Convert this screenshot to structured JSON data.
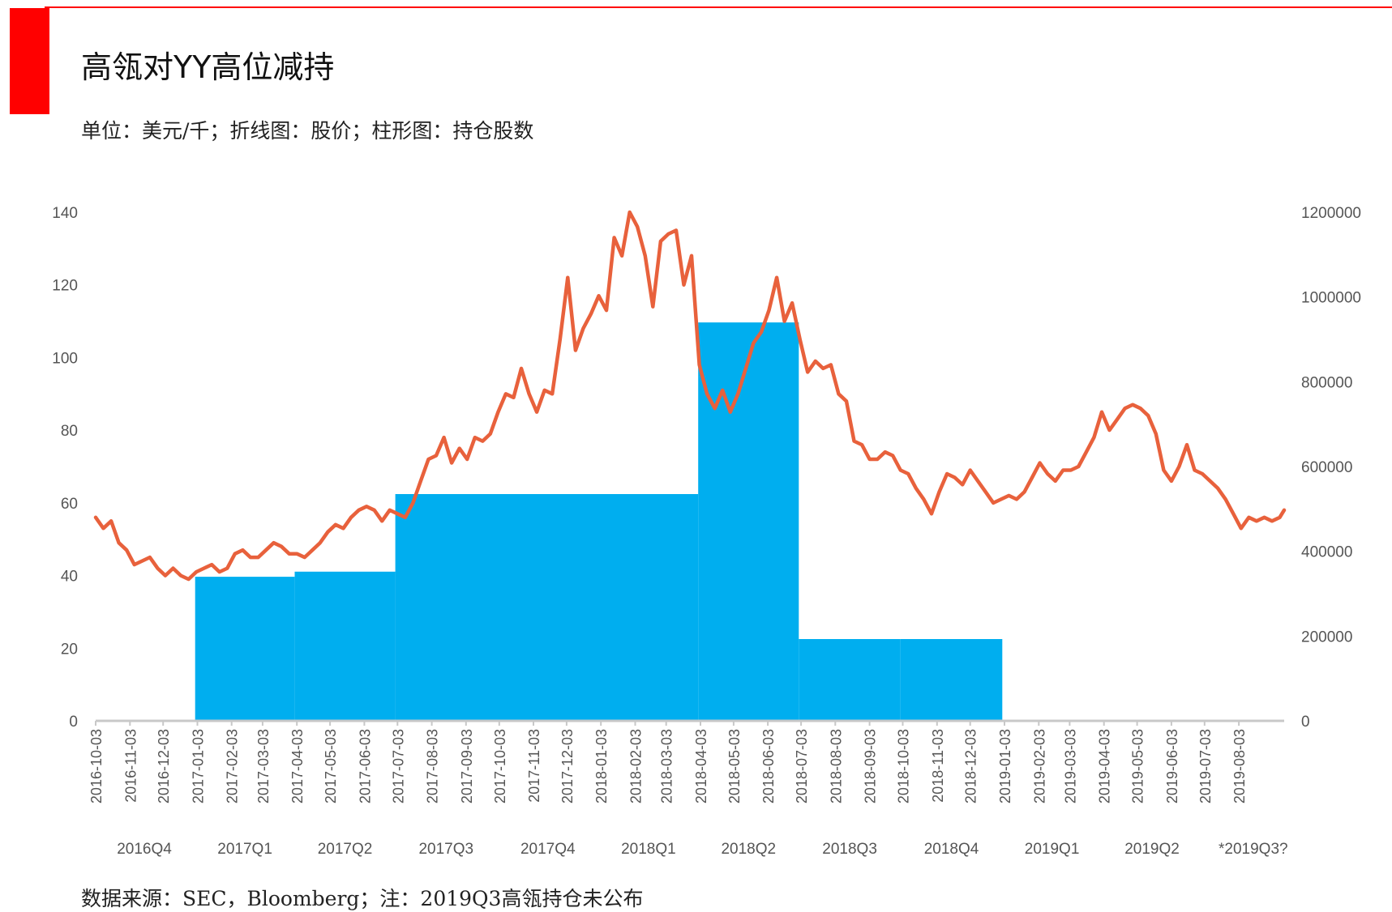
{
  "header": {
    "title": "高瓴对YY高位减持",
    "subtitle": "单位：美元/千；折线图：股价；柱形图：持仓股数"
  },
  "footer": {
    "source": "数据来源：SEC，Bloomberg；注：2019Q3高瓴持仓未公布"
  },
  "colors": {
    "accent_red": "#ff0000",
    "line": "#e8613c",
    "bars": "#00aeef",
    "axis": "#c8c8c8"
  },
  "chart_data": {
    "type": "bar+line",
    "title": "高瓴对YY高位减持",
    "left_axis": {
      "label": "股价",
      "ylim": [
        0,
        140
      ],
      "ticks": [
        0,
        20,
        40,
        60,
        80,
        100,
        120,
        140
      ]
    },
    "right_axis": {
      "label": "持仓股数",
      "ylim": [
        0,
        1200000
      ],
      "ticks": [
        0,
        200000,
        400000,
        600000,
        800000,
        1000000,
        1200000
      ]
    },
    "date_range": [
      "2016-10-03",
      "2019-09-13"
    ],
    "x_tick_labels": [
      "2016-10-03",
      "2016-11-03",
      "2016-12-03",
      "2017-01-03",
      "2017-02-03",
      "2017-03-03",
      "2017-04-03",
      "2017-05-03",
      "2017-06-03",
      "2017-07-03",
      "2017-08-03",
      "2017-09-03",
      "2017-10-03",
      "2017-11-03",
      "2017-12-03",
      "2018-01-03",
      "2018-02-03",
      "2018-03-03",
      "2018-04-03",
      "2018-05-03",
      "2018-06-03",
      "2018-07-03",
      "2018-08-03",
      "2018-09-03",
      "2018-10-03",
      "2018-11-03",
      "2018-12-03",
      "2019-01-03",
      "2019-02-03",
      "2019-03-03",
      "2019-04-03",
      "2019-05-03",
      "2019-06-03",
      "2019-07-03",
      "2019-08-03"
    ],
    "quarter_labels": [
      {
        "label": "2016Q4",
        "start": "2016-10-01",
        "end": "2016-12-31"
      },
      {
        "label": "2017Q1",
        "start": "2017-01-01",
        "end": "2017-03-31"
      },
      {
        "label": "2017Q2",
        "start": "2017-04-01",
        "end": "2017-06-30"
      },
      {
        "label": "2017Q3",
        "start": "2017-07-01",
        "end": "2017-09-30"
      },
      {
        "label": "2017Q4",
        "start": "2017-10-01",
        "end": "2017-12-31"
      },
      {
        "label": "2018Q1",
        "start": "2018-01-01",
        "end": "2018-03-31"
      },
      {
        "label": "2018Q2",
        "start": "2018-04-01",
        "end": "2018-06-30"
      },
      {
        "label": "2018Q3",
        "start": "2018-07-01",
        "end": "2018-09-30"
      },
      {
        "label": "2018Q4",
        "start": "2018-10-01",
        "end": "2018-12-31"
      },
      {
        "label": "2019Q1",
        "start": "2019-01-01",
        "end": "2019-03-31"
      },
      {
        "label": "2019Q2",
        "start": "2019-04-01",
        "end": "2019-06-30"
      },
      {
        "label": "*2019Q3?",
        "start": "2019-07-01",
        "end": "2019-09-30"
      }
    ],
    "holdings": [
      {
        "start": "2017-01-01",
        "end": "2017-03-31",
        "shares": 340000
      },
      {
        "start": "2017-04-01",
        "end": "2017-06-30",
        "shares": 352000
      },
      {
        "start": "2017-07-01",
        "end": "2017-12-31",
        "shares": 535000
      },
      {
        "start": "2018-01-01",
        "end": "2018-03-31",
        "shares": 535000
      },
      {
        "start": "2018-04-01",
        "end": "2018-06-30",
        "shares": 940000
      },
      {
        "start": "2018-07-01",
        "end": "2018-09-30",
        "shares": 193000
      },
      {
        "start": "2018-10-01",
        "end": "2018-12-31",
        "shares": 193000
      }
    ],
    "price": [
      [
        "2016-10-03",
        56
      ],
      [
        "2016-10-10",
        53
      ],
      [
        "2016-10-17",
        55
      ],
      [
        "2016-10-24",
        49
      ],
      [
        "2016-10-31",
        47
      ],
      [
        "2016-11-07",
        43
      ],
      [
        "2016-11-14",
        44
      ],
      [
        "2016-11-21",
        45
      ],
      [
        "2016-11-28",
        42
      ],
      [
        "2016-12-05",
        40
      ],
      [
        "2016-12-12",
        42
      ],
      [
        "2016-12-19",
        40
      ],
      [
        "2016-12-26",
        39
      ],
      [
        "2017-01-02",
        41
      ],
      [
        "2017-01-09",
        42
      ],
      [
        "2017-01-16",
        43
      ],
      [
        "2017-01-23",
        41
      ],
      [
        "2017-01-30",
        42
      ],
      [
        "2017-02-06",
        46
      ],
      [
        "2017-02-13",
        47
      ],
      [
        "2017-02-20",
        45
      ],
      [
        "2017-02-27",
        45
      ],
      [
        "2017-03-06",
        47
      ],
      [
        "2017-03-13",
        49
      ],
      [
        "2017-03-20",
        48
      ],
      [
        "2017-03-27",
        46
      ],
      [
        "2017-04-03",
        46
      ],
      [
        "2017-04-10",
        45
      ],
      [
        "2017-04-17",
        47
      ],
      [
        "2017-04-24",
        49
      ],
      [
        "2017-05-01",
        52
      ],
      [
        "2017-05-08",
        54
      ],
      [
        "2017-05-15",
        53
      ],
      [
        "2017-05-22",
        56
      ],
      [
        "2017-05-29",
        58
      ],
      [
        "2017-06-05",
        59
      ],
      [
        "2017-06-12",
        58
      ],
      [
        "2017-06-19",
        55
      ],
      [
        "2017-06-26",
        58
      ],
      [
        "2017-07-03",
        57
      ],
      [
        "2017-07-10",
        56
      ],
      [
        "2017-07-17",
        60
      ],
      [
        "2017-07-24",
        66
      ],
      [
        "2017-07-31",
        72
      ],
      [
        "2017-08-07",
        73
      ],
      [
        "2017-08-14",
        78
      ],
      [
        "2017-08-21",
        71
      ],
      [
        "2017-08-28",
        75
      ],
      [
        "2017-09-04",
        72
      ],
      [
        "2017-09-11",
        78
      ],
      [
        "2017-09-18",
        77
      ],
      [
        "2017-09-25",
        79
      ],
      [
        "2017-10-02",
        85
      ],
      [
        "2017-10-09",
        90
      ],
      [
        "2017-10-16",
        89
      ],
      [
        "2017-10-23",
        97
      ],
      [
        "2017-10-30",
        90
      ],
      [
        "2017-11-06",
        85
      ],
      [
        "2017-11-13",
        91
      ],
      [
        "2017-11-20",
        90
      ],
      [
        "2017-11-27",
        105
      ],
      [
        "2017-12-04",
        122
      ],
      [
        "2017-12-11",
        102
      ],
      [
        "2017-12-18",
        108
      ],
      [
        "2017-12-25",
        112
      ],
      [
        "2018-01-01",
        117
      ],
      [
        "2018-01-08",
        113
      ],
      [
        "2018-01-15",
        133
      ],
      [
        "2018-01-22",
        128
      ],
      [
        "2018-01-29",
        140
      ],
      [
        "2018-02-05",
        136
      ],
      [
        "2018-02-12",
        128
      ],
      [
        "2018-02-19",
        114
      ],
      [
        "2018-02-26",
        132
      ],
      [
        "2018-03-05",
        134
      ],
      [
        "2018-03-12",
        135
      ],
      [
        "2018-03-19",
        120
      ],
      [
        "2018-03-26",
        128
      ],
      [
        "2018-04-02",
        98
      ],
      [
        "2018-04-09",
        90
      ],
      [
        "2018-04-16",
        86
      ],
      [
        "2018-04-23",
        91
      ],
      [
        "2018-04-30",
        85
      ],
      [
        "2018-05-07",
        90
      ],
      [
        "2018-05-14",
        97
      ],
      [
        "2018-05-21",
        104
      ],
      [
        "2018-05-28",
        107
      ],
      [
        "2018-06-04",
        113
      ],
      [
        "2018-06-11",
        122
      ],
      [
        "2018-06-18",
        110
      ],
      [
        "2018-06-25",
        115
      ],
      [
        "2018-07-02",
        105
      ],
      [
        "2018-07-09",
        96
      ],
      [
        "2018-07-16",
        99
      ],
      [
        "2018-07-23",
        97
      ],
      [
        "2018-07-30",
        98
      ],
      [
        "2018-08-06",
        90
      ],
      [
        "2018-08-13",
        88
      ],
      [
        "2018-08-20",
        77
      ],
      [
        "2018-08-27",
        76
      ],
      [
        "2018-09-03",
        72
      ],
      [
        "2018-09-10",
        72
      ],
      [
        "2018-09-17",
        74
      ],
      [
        "2018-09-24",
        73
      ],
      [
        "2018-10-01",
        69
      ],
      [
        "2018-10-08",
        68
      ],
      [
        "2018-10-15",
        64
      ],
      [
        "2018-10-22",
        61
      ],
      [
        "2018-10-29",
        57
      ],
      [
        "2018-11-05",
        63
      ],
      [
        "2018-11-12",
        68
      ],
      [
        "2018-11-19",
        67
      ],
      [
        "2018-11-26",
        65
      ],
      [
        "2018-12-03",
        69
      ],
      [
        "2018-12-10",
        66
      ],
      [
        "2018-12-17",
        63
      ],
      [
        "2018-12-24",
        60
      ],
      [
        "2019-01-07",
        62
      ],
      [
        "2019-01-14",
        61
      ],
      [
        "2019-01-21",
        63
      ],
      [
        "2019-01-28",
        67
      ],
      [
        "2019-02-04",
        71
      ],
      [
        "2019-02-11",
        68
      ],
      [
        "2019-02-18",
        66
      ],
      [
        "2019-02-25",
        69
      ],
      [
        "2019-03-04",
        69
      ],
      [
        "2019-03-11",
        70
      ],
      [
        "2019-03-18",
        74
      ],
      [
        "2019-03-25",
        78
      ],
      [
        "2019-04-01",
        85
      ],
      [
        "2019-04-08",
        80
      ],
      [
        "2019-04-15",
        83
      ],
      [
        "2019-04-22",
        86
      ],
      [
        "2019-04-29",
        87
      ],
      [
        "2019-05-06",
        86
      ],
      [
        "2019-05-13",
        84
      ],
      [
        "2019-05-20",
        79
      ],
      [
        "2019-05-27",
        69
      ],
      [
        "2019-06-03",
        66
      ],
      [
        "2019-06-10",
        70
      ],
      [
        "2019-06-17",
        76
      ],
      [
        "2019-06-24",
        69
      ],
      [
        "2019-07-01",
        68
      ],
      [
        "2019-07-08",
        66
      ],
      [
        "2019-07-15",
        64
      ],
      [
        "2019-07-22",
        61
      ],
      [
        "2019-07-29",
        57
      ],
      [
        "2019-08-05",
        53
      ],
      [
        "2019-08-12",
        56
      ],
      [
        "2019-08-19",
        55
      ],
      [
        "2019-08-26",
        56
      ],
      [
        "2019-09-02",
        55
      ],
      [
        "2019-09-09",
        56
      ],
      [
        "2019-09-13",
        58
      ]
    ]
  }
}
